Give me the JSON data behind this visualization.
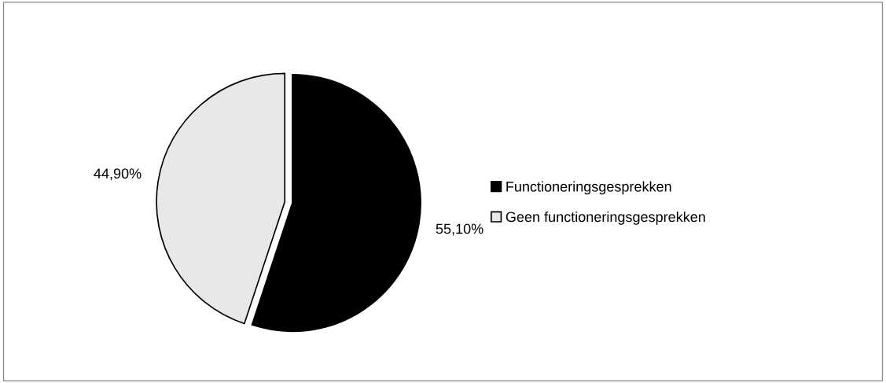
{
  "chart_data": {
    "type": "pie",
    "categories": [
      "Functioneringsgesprekken",
      "Geen functioneringsgesprekken"
    ],
    "values": [
      55.1,
      44.9
    ],
    "colors": [
      "#000000",
      "#e8e8e8"
    ],
    "value_labels": [
      "55,10%",
      "44,90%"
    ],
    "legend": "right"
  }
}
